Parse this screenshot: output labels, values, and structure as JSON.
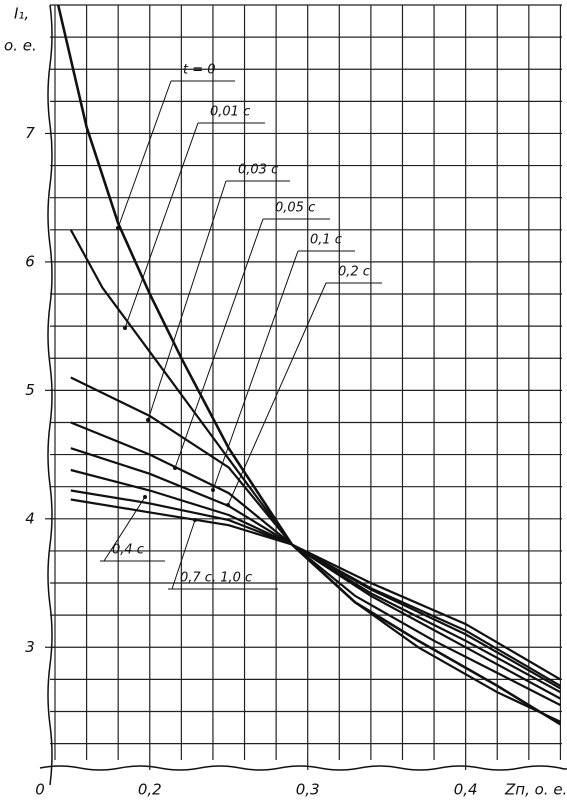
{
  "chart_data": {
    "type": "line",
    "ylabel": "I₁,",
    "ylabel_unit": "о. е.",
    "xlabel": "Zп, о. е.",
    "origin_label": "0",
    "xlim": [
      0.14,
      0.461
    ],
    "ylim": [
      2.06,
      8.0
    ],
    "xticks": [
      {
        "value": 0.2,
        "label": "0,2"
      },
      {
        "value": 0.3,
        "label": "0,3"
      },
      {
        "value": 0.4,
        "label": "0,4"
      }
    ],
    "yticks": [
      3,
      4,
      5,
      6,
      7
    ],
    "grid": true,
    "xgrid": [
      0.14,
      0.16,
      0.18,
      0.2,
      0.22,
      0.24,
      0.26,
      0.28,
      0.3,
      0.32,
      0.34,
      0.36,
      0.38,
      0.4,
      0.42,
      0.44,
      0.46
    ],
    "ygrid": [
      2.25,
      2.5,
      2.75,
      3,
      3.25,
      3.5,
      3.75,
      4,
      4.25,
      4.5,
      4.75,
      5,
      5.25,
      5.5,
      5.75,
      6,
      6.25,
      6.5,
      6.75,
      7,
      7.25,
      7.5,
      7.75,
      8
    ],
    "color": "#111111",
    "series": [
      {
        "name": "t = 0",
        "x": [
          0.142,
          0.16,
          0.18,
          0.2,
          0.22,
          0.25,
          0.29,
          0.33,
          0.37,
          0.42,
          0.46
        ],
        "values": [
          8.0,
          7.05,
          6.3,
          5.75,
          5.25,
          4.55,
          3.8,
          3.35,
          3.05,
          2.7,
          2.4
        ]
      },
      {
        "name": "0,01 с",
        "x": [
          0.15,
          0.17,
          0.2,
          0.23,
          0.26,
          0.29,
          0.33,
          0.37,
          0.42,
          0.46
        ],
        "values": [
          6.25,
          5.8,
          5.3,
          4.8,
          4.3,
          3.8,
          3.35,
          3.0,
          2.65,
          2.42
        ]
      },
      {
        "name": "0,03 с",
        "x": [
          0.15,
          0.2,
          0.25,
          0.29,
          0.33,
          0.38,
          0.42,
          0.46
        ],
        "values": [
          5.1,
          4.8,
          4.4,
          3.8,
          3.4,
          3.05,
          2.8,
          2.55
        ]
      },
      {
        "name": "0,05 с",
        "x": [
          0.15,
          0.2,
          0.25,
          0.29,
          0.34,
          0.4,
          0.46
        ],
        "values": [
          4.75,
          4.5,
          4.2,
          3.8,
          3.4,
          3.0,
          2.6
        ]
      },
      {
        "name": "0,1 с",
        "x": [
          0.15,
          0.2,
          0.25,
          0.29,
          0.34,
          0.4,
          0.46
        ],
        "values": [
          4.55,
          4.35,
          4.1,
          3.8,
          3.42,
          3.05,
          2.65
        ]
      },
      {
        "name": "0,2 с",
        "x": [
          0.15,
          0.2,
          0.25,
          0.29,
          0.34,
          0.4,
          0.46
        ],
        "values": [
          4.38,
          4.22,
          4.03,
          3.8,
          3.45,
          3.1,
          2.68
        ]
      },
      {
        "name": "0,4 с",
        "x": [
          0.15,
          0.2,
          0.25,
          0.29,
          0.34,
          0.4,
          0.46
        ],
        "values": [
          4.22,
          4.12,
          3.99,
          3.8,
          3.46,
          3.13,
          2.7
        ]
      },
      {
        "name": "0,7 с, 1,0 с",
        "x": [
          0.15,
          0.2,
          0.25,
          0.29,
          0.34,
          0.4,
          0.46
        ],
        "values": [
          4.15,
          4.05,
          3.95,
          3.8,
          3.5,
          3.18,
          2.75
        ]
      }
    ]
  }
}
